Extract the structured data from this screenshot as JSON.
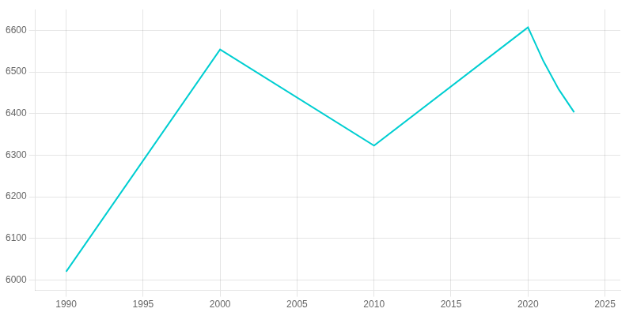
{
  "chart_data": {
    "type": "line",
    "x": [
      1990,
      2000,
      2010,
      2020,
      2021,
      2022,
      2023
    ],
    "values": [
      6020,
      6554,
      6323,
      6607,
      6526,
      6458,
      6403
    ],
    "color": "#00CED1",
    "xlim": [
      1988,
      2026
    ],
    "ylim": [
      5975,
      6650
    ],
    "xticks": [
      1990,
      1995,
      2000,
      2005,
      2010,
      2015,
      2020,
      2025
    ],
    "yticks": [
      6000,
      6100,
      6200,
      6300,
      6400,
      6500,
      6600
    ],
    "grid": true
  }
}
